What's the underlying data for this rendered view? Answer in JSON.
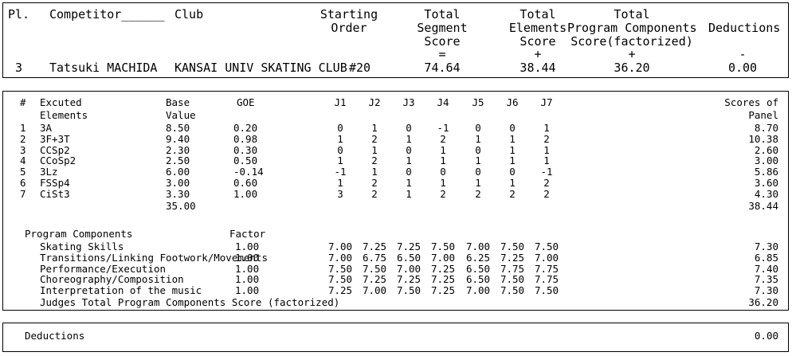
{
  "header": {
    "labels": {
      "place": "Pl.",
      "competitor": "Competitor______",
      "club": "Club",
      "starting_order_1": "Starting",
      "starting_order_2": "Order",
      "tss_1": "Total",
      "tss_2": "Segment",
      "tss_3": "Score",
      "tes_1": "Total",
      "tes_2": "Elements",
      "tes_3": "Score",
      "pcs_1": "Total",
      "pcs_2": "Program Components",
      "pcs_3": "Score(factorized)",
      "deductions": "Deductions",
      "op_eq": "=",
      "op_plus1": "+",
      "op_plus2": "+",
      "op_minus": "-"
    },
    "values": {
      "place": "3",
      "competitor": "Tatsuki MACHIDA",
      "club": "KANSAI UNIV SKATING CLUB",
      "starting_order": "#20",
      "total_segment_score": "74.64",
      "total_elements_score": "38.44",
      "total_pcs": "36.20",
      "deductions": "0.00"
    }
  },
  "elements": {
    "headers": {
      "num": "#",
      "executed_1": "Excuted",
      "executed_2": "Elements",
      "base_1": "Base",
      "base_2": "Value",
      "goe": "GOE",
      "judges": [
        "J1",
        "J2",
        "J3",
        "J4",
        "J5",
        "J6",
        "J7"
      ],
      "scores_1": "Scores of",
      "scores_2": "Panel"
    },
    "rows": [
      {
        "num": "1",
        "element": "3A",
        "base": "8.50",
        "goe": "0.20",
        "j": [
          "0",
          "1",
          "0",
          "-1",
          "0",
          "0",
          "1"
        ],
        "score": "8.70"
      },
      {
        "num": "2",
        "element": "3F+3T",
        "base": "9.40",
        "goe": "0.98",
        "j": [
          "1",
          "2",
          "1",
          "2",
          "1",
          "1",
          "2"
        ],
        "score": "10.38"
      },
      {
        "num": "3",
        "element": "CCSp2",
        "base": "2.30",
        "goe": "0.30",
        "j": [
          "0",
          "1",
          "0",
          "1",
          "0",
          "1",
          "1"
        ],
        "score": "2.60"
      },
      {
        "num": "4",
        "element": "CCoSp2",
        "base": "2.50",
        "goe": "0.50",
        "j": [
          "1",
          "2",
          "1",
          "1",
          "1",
          "1",
          "1"
        ],
        "score": "3.00"
      },
      {
        "num": "5",
        "element": "3Lz",
        "base": "6.00",
        "goe": "-0.14",
        "j": [
          "-1",
          "1",
          "0",
          "0",
          "0",
          "0",
          "-1"
        ],
        "score": "5.86"
      },
      {
        "num": "6",
        "element": "FSSp4",
        "base": "3.00",
        "goe": "0.60",
        "j": [
          "1",
          "2",
          "1",
          "1",
          "1",
          "1",
          "2"
        ],
        "score": "3.60"
      },
      {
        "num": "7",
        "element": "CiSt3",
        "base": "3.30",
        "goe": "1.00",
        "j": [
          "3",
          "2",
          "1",
          "2",
          "2",
          "2",
          "2"
        ],
        "score": "4.30"
      }
    ],
    "base_total": "35.00",
    "score_total": "38.44"
  },
  "program_components": {
    "title": "Program Components",
    "factor_label": "Factor",
    "rows": [
      {
        "name": "Skating Skills",
        "factor": "1.00",
        "j": [
          "7.00",
          "7.25",
          "7.25",
          "7.50",
          "7.00",
          "7.50",
          "7.50"
        ],
        "score": "7.30"
      },
      {
        "name": "Transitions/Linking Footwork/Movements",
        "factor": "1.00",
        "j": [
          "7.00",
          "6.75",
          "6.50",
          "7.00",
          "6.25",
          "7.25",
          "7.00"
        ],
        "score": "6.85"
      },
      {
        "name": "Performance/Execution",
        "factor": "1.00",
        "j": [
          "7.50",
          "7.50",
          "7.00",
          "7.25",
          "6.50",
          "7.75",
          "7.75"
        ],
        "score": "7.40"
      },
      {
        "name": "Choreography/Composition",
        "factor": "1.00",
        "j": [
          "7.50",
          "7.25",
          "7.25",
          "7.25",
          "6.50",
          "7.50",
          "7.75"
        ],
        "score": "7.35"
      },
      {
        "name": "Interpretation of the music",
        "factor": "1.00",
        "j": [
          "7.25",
          "7.00",
          "7.50",
          "7.25",
          "7.00",
          "7.50",
          "7.50"
        ],
        "score": "7.30"
      }
    ],
    "total_label": "Judges Total Program Components Score (factorized)",
    "total_value": "36.20"
  },
  "deductions_box": {
    "label": "Deductions",
    "value": "0.00"
  }
}
